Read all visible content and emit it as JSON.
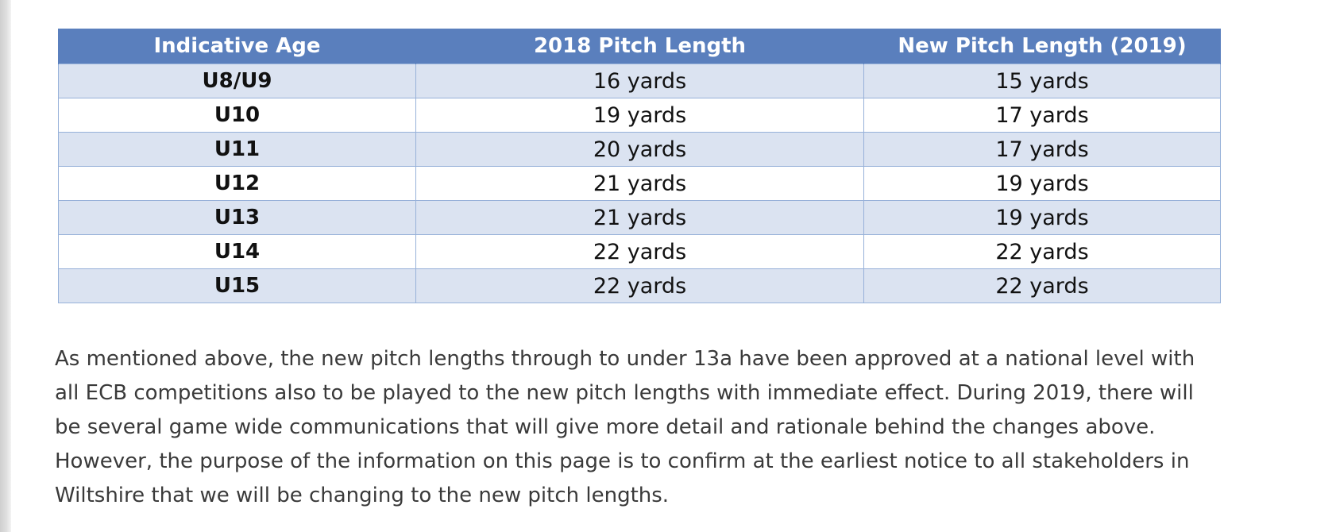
{
  "table": {
    "headers": [
      "Indicative Age",
      "2018 Pitch Length",
      "New Pitch Length (2019)"
    ],
    "rows": [
      [
        "U8/U9",
        "16 yards",
        "15 yards"
      ],
      [
        "U10",
        "19 yards",
        "17 yards"
      ],
      [
        "U11",
        "20 yards",
        "17 yards"
      ],
      [
        "U12",
        "21 yards",
        "19 yards"
      ],
      [
        "U13",
        "21 yards",
        "19 yards"
      ],
      [
        "U14",
        "22 yards",
        "22 yards"
      ],
      [
        "U15",
        "22 yards",
        "22 yards"
      ]
    ]
  },
  "paragraph": {
    "lines": [
      "As mentioned above, the new pitch lengths through to under 13a have been approved at a national level with",
      "all ECB competitions also to be played to the new pitch lengths with immediate effect. During 2019, there will",
      "be several game wide communications that will give more detail and rationale behind the changes above.",
      "However, the purpose of the information on this page is to confirm at the earliest notice to all stakeholders in",
      "Wiltshire that we will be changing to the new pitch lengths."
    ]
  },
  "colors": {
    "header_bg": "#5a7fbd",
    "row_alt_bg": "#dbe3f1",
    "border": "#97b1d9"
  }
}
